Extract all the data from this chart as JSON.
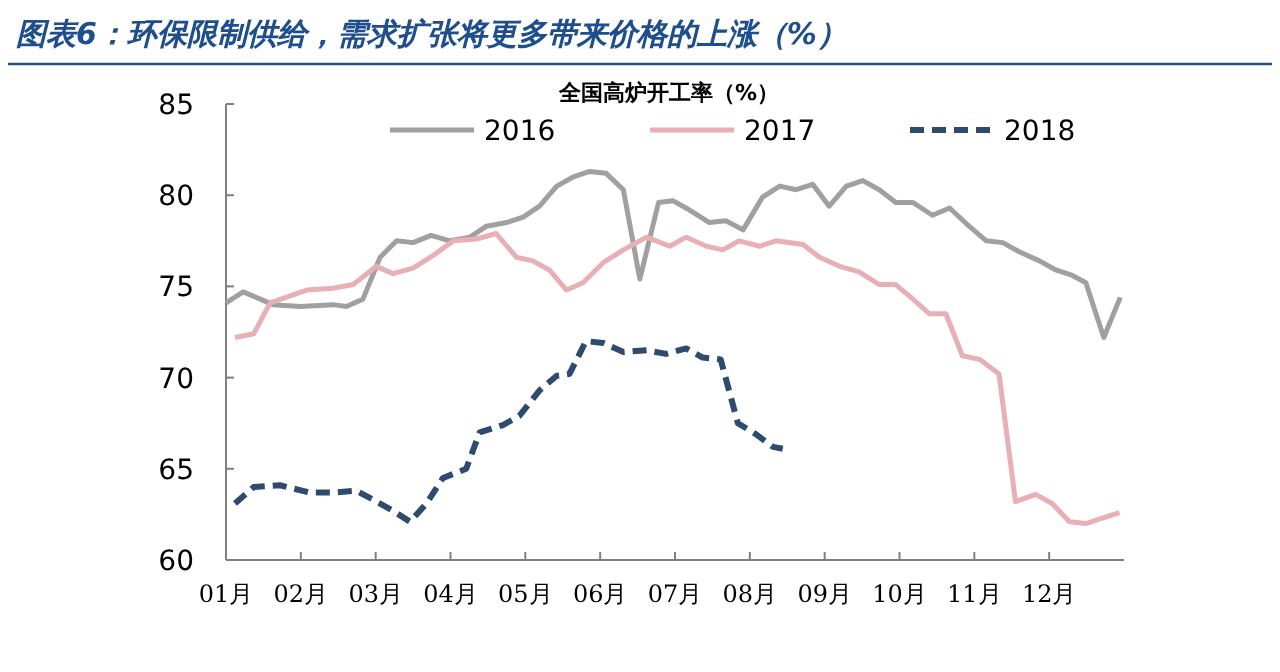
{
  "chart_data": {
    "type": "line",
    "title": "图表6：环保限制供给，需求扩张将更多带来价格的上涨（%）",
    "subtitle": "全国高炉开工率（%）",
    "xlim": [
      1,
      13
    ],
    "xticks": [
      {
        "value": 1,
        "label": "01月"
      },
      {
        "value": 2,
        "label": "02月"
      },
      {
        "value": 3,
        "label": "03月"
      },
      {
        "value": 4,
        "label": "04月"
      },
      {
        "value": 5,
        "label": "05月"
      },
      {
        "value": 6,
        "label": "06月"
      },
      {
        "value": 7,
        "label": "07月"
      },
      {
        "value": 8,
        "label": "08月"
      },
      {
        "value": 9,
        "label": "09月"
      },
      {
        "value": 10,
        "label": "10月"
      },
      {
        "value": 11,
        "label": "11月"
      },
      {
        "value": 12,
        "label": "12月"
      }
    ],
    "ylim": [
      60,
      85
    ],
    "yticks": [
      60,
      65,
      70,
      75,
      80,
      85
    ],
    "legend": "top",
    "grid": false,
    "marker": "none",
    "series": [
      {
        "name": "2016",
        "color": "#a0a0a0",
        "line_style": "solid",
        "x": [
          1.0,
          1.23,
          1.63,
          2.0,
          2.43,
          2.61,
          2.83,
          3.06,
          3.28,
          3.5,
          3.74,
          3.99,
          4.26,
          4.48,
          4.75,
          4.97,
          5.19,
          5.42,
          5.64,
          5.86,
          6.08,
          6.31,
          6.53,
          6.78,
          6.97,
          7.19,
          7.46,
          7.68,
          7.91,
          8.17,
          8.4,
          8.62,
          8.84,
          9.06,
          9.29,
          9.51,
          9.73,
          9.95,
          10.18,
          10.44,
          10.67,
          10.93,
          11.16,
          11.38,
          11.6,
          11.87,
          12.09,
          12.31,
          12.49,
          12.73,
          12.95
        ],
        "values": [
          74.1,
          74.7,
          74.0,
          73.9,
          74.0,
          73.9,
          74.3,
          76.6,
          77.5,
          77.4,
          77.8,
          77.5,
          77.7,
          78.3,
          78.5,
          78.8,
          79.4,
          80.5,
          81.0,
          81.3,
          81.2,
          80.3,
          75.4,
          79.6,
          79.7,
          79.2,
          78.5,
          78.6,
          78.1,
          79.9,
          80.5,
          80.3,
          80.6,
          79.4,
          80.5,
          80.8,
          80.3,
          79.6,
          79.6,
          78.9,
          79.3,
          78.3,
          77.5,
          77.4,
          76.9,
          76.4,
          75.9,
          75.6,
          75.2,
          72.2,
          74.4
        ]
      },
      {
        "name": "2017",
        "color": "#e8b0b6",
        "line_style": "solid",
        "x": [
          1.12,
          1.37,
          1.59,
          2.08,
          2.43,
          2.7,
          3.01,
          3.23,
          3.5,
          3.77,
          4.04,
          4.35,
          4.61,
          4.88,
          5.1,
          5.32,
          5.55,
          5.77,
          6.04,
          6.31,
          6.62,
          6.93,
          7.15,
          7.42,
          7.64,
          7.86,
          8.13,
          8.35,
          8.71,
          8.93,
          9.2,
          9.46,
          9.73,
          9.95,
          10.18,
          10.4,
          10.62,
          10.84,
          11.07,
          11.33,
          11.55,
          11.82,
          12.04,
          12.27,
          12.49,
          12.71,
          12.94
        ],
        "values": [
          72.2,
          72.4,
          74.1,
          74.8,
          74.9,
          75.1,
          76.1,
          75.7,
          76.0,
          76.7,
          77.5,
          77.6,
          77.9,
          76.6,
          76.4,
          75.9,
          74.8,
          75.2,
          76.3,
          77.0,
          77.7,
          77.2,
          77.7,
          77.2,
          77.0,
          77.5,
          77.2,
          77.5,
          77.3,
          76.6,
          76.1,
          75.8,
          75.1,
          75.1,
          74.3,
          73.5,
          73.5,
          71.2,
          71.0,
          70.2,
          63.2,
          63.6,
          63.1,
          62.1,
          62.0,
          62.3,
          62.6
        ]
      },
      {
        "name": "2018",
        "color": "#2e4a6e",
        "line_style": "dashed",
        "x": [
          1.12,
          1.37,
          1.72,
          2.12,
          2.43,
          2.74,
          2.97,
          3.23,
          3.46,
          3.68,
          3.9,
          4.21,
          4.39,
          4.7,
          4.92,
          5.19,
          5.42,
          5.59,
          5.81,
          6.04,
          6.31,
          6.62,
          6.88,
          7.15,
          7.37,
          7.61,
          7.84,
          8.08,
          8.31,
          8.44
        ],
        "values": [
          63.1,
          64.0,
          64.1,
          63.7,
          63.7,
          63.8,
          63.3,
          62.7,
          62.1,
          63.1,
          64.5,
          65.0,
          67.0,
          67.4,
          67.9,
          69.3,
          70.1,
          70.2,
          72.0,
          71.9,
          71.4,
          71.5,
          71.3,
          71.6,
          71.1,
          71.0,
          67.5,
          66.9,
          66.2,
          66.1
        ]
      }
    ]
  }
}
